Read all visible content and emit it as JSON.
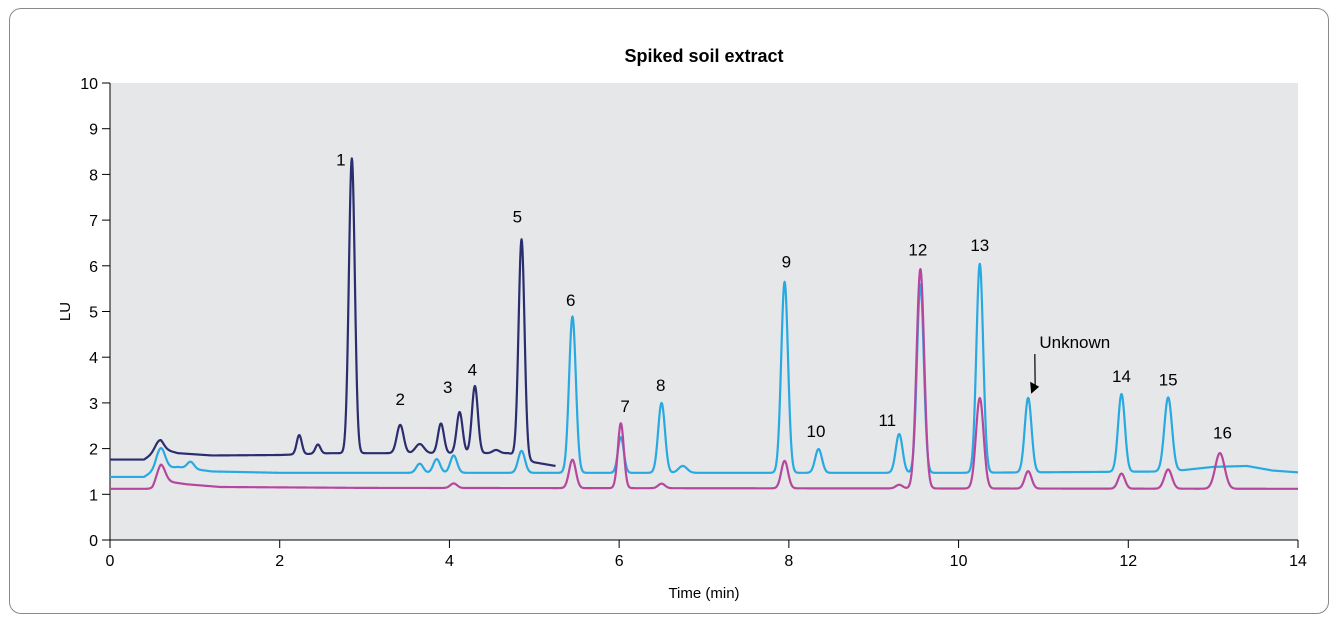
{
  "chart_data": {
    "type": "line",
    "title": "Spiked soil extract",
    "xlabel": "Time (min)",
    "ylabel": "LU",
    "xlim": [
      0,
      14
    ],
    "ylim": [
      0,
      10
    ],
    "xticks": [
      0,
      2,
      4,
      6,
      8,
      10,
      12,
      14
    ],
    "yticks": [
      0,
      1,
      2,
      3,
      4,
      5,
      6,
      7,
      8,
      9,
      10
    ],
    "grid": false,
    "plot_background": "#e6e7e9",
    "series": [
      {
        "color": "#2b2d6e",
        "x_range": [
          0,
          5.25
        ],
        "baseline": [
          [
            0,
            1.76
          ],
          [
            0.4,
            1.76
          ],
          [
            0.6,
            2.0
          ],
          [
            0.8,
            1.9
          ],
          [
            1.2,
            1.85
          ],
          [
            2.0,
            1.86
          ],
          [
            2.6,
            1.9
          ],
          [
            3.0,
            1.9
          ],
          [
            4.0,
            1.9
          ],
          [
            4.7,
            1.9
          ],
          [
            5.0,
            1.7
          ],
          [
            5.25,
            1.62
          ]
        ],
        "peaks": [
          [
            0.58,
            0.2,
            0.05
          ],
          [
            2.23,
            0.42,
            0.03
          ],
          [
            2.45,
            0.2,
            0.03
          ],
          [
            2.85,
            6.45,
            0.035
          ],
          [
            3.42,
            0.62,
            0.04
          ],
          [
            3.65,
            0.2,
            0.05
          ],
          [
            3.9,
            0.65,
            0.035
          ],
          [
            4.12,
            0.9,
            0.035
          ],
          [
            4.3,
            1.47,
            0.035
          ],
          [
            4.55,
            0.07,
            0.04
          ],
          [
            4.85,
            4.78,
            0.035
          ]
        ]
      },
      {
        "color": "#29a9e1",
        "x_range": [
          0,
          14
        ],
        "baseline": [
          [
            0,
            1.38
          ],
          [
            0.4,
            1.38
          ],
          [
            0.55,
            1.55
          ],
          [
            0.8,
            1.6
          ],
          [
            1.2,
            1.5
          ],
          [
            2.0,
            1.47
          ],
          [
            5.0,
            1.47
          ],
          [
            10.0,
            1.47
          ],
          [
            12.5,
            1.5
          ],
          [
            13.0,
            1.6
          ],
          [
            13.4,
            1.62
          ],
          [
            13.7,
            1.52
          ],
          [
            14,
            1.48
          ]
        ],
        "peaks": [
          [
            0.6,
            0.45,
            0.05
          ],
          [
            0.95,
            0.15,
            0.04
          ],
          [
            3.65,
            0.2,
            0.04
          ],
          [
            3.85,
            0.3,
            0.04
          ],
          [
            4.05,
            0.38,
            0.04
          ],
          [
            4.85,
            0.48,
            0.04
          ],
          [
            5.45,
            3.42,
            0.04
          ],
          [
            6.02,
            0.78,
            0.035
          ],
          [
            6.5,
            1.53,
            0.04
          ],
          [
            6.75,
            0.15,
            0.05
          ],
          [
            7.95,
            4.18,
            0.04
          ],
          [
            8.35,
            0.52,
            0.04
          ],
          [
            9.3,
            0.85,
            0.04
          ],
          [
            9.55,
            4.12,
            0.04
          ],
          [
            10.25,
            4.57,
            0.04
          ],
          [
            10.82,
            1.63,
            0.04
          ],
          [
            11.92,
            1.7,
            0.04
          ],
          [
            12.47,
            1.62,
            0.045
          ]
        ]
      },
      {
        "color": "#b5489d",
        "x_range": [
          0,
          14
        ],
        "baseline": [
          [
            0,
            1.12
          ],
          [
            0.5,
            1.12
          ],
          [
            0.6,
            1.3
          ],
          [
            0.9,
            1.22
          ],
          [
            1.3,
            1.16
          ],
          [
            3.0,
            1.14
          ],
          [
            14,
            1.12
          ]
        ],
        "peaks": [
          [
            0.6,
            0.35,
            0.05
          ],
          [
            4.05,
            0.1,
            0.04
          ],
          [
            5.45,
            0.62,
            0.04
          ],
          [
            6.02,
            1.42,
            0.035
          ],
          [
            6.5,
            0.1,
            0.04
          ],
          [
            7.95,
            0.6,
            0.04
          ],
          [
            9.3,
            0.08,
            0.04
          ],
          [
            9.55,
            4.8,
            0.045
          ],
          [
            10.25,
            1.98,
            0.045
          ],
          [
            10.82,
            0.38,
            0.04
          ],
          [
            11.92,
            0.33,
            0.04
          ],
          [
            12.47,
            0.42,
            0.045
          ],
          [
            13.08,
            0.78,
            0.055
          ]
        ]
      }
    ],
    "annotations": [
      {
        "text": "1",
        "x": 2.72,
        "y": 8.2
      },
      {
        "text": "2",
        "x": 3.42,
        "y": 2.95
      },
      {
        "text": "3",
        "x": 3.98,
        "y": 3.22
      },
      {
        "text": "4",
        "x": 4.27,
        "y": 3.6
      },
      {
        "text": "5",
        "x": 4.8,
        "y": 6.95
      },
      {
        "text": "6",
        "x": 5.43,
        "y": 5.12
      },
      {
        "text": "7",
        "x": 6.07,
        "y": 2.8
      },
      {
        "text": "8",
        "x": 6.49,
        "y": 3.26
      },
      {
        "text": "9",
        "x": 7.97,
        "y": 5.96
      },
      {
        "text": "10",
        "x": 8.32,
        "y": 2.25
      },
      {
        "text": "11",
        "x": 9.16,
        "y": 2.5
      },
      {
        "text": "12",
        "x": 9.52,
        "y": 6.23
      },
      {
        "text": "13",
        "x": 10.25,
        "y": 6.32
      },
      {
        "text": "Unknown",
        "x": 11.37,
        "y": 4.2
      },
      {
        "text": "14",
        "x": 11.92,
        "y": 3.46
      },
      {
        "text": "15",
        "x": 12.47,
        "y": 3.38
      },
      {
        "text": "16",
        "x": 13.11,
        "y": 2.22
      }
    ]
  }
}
